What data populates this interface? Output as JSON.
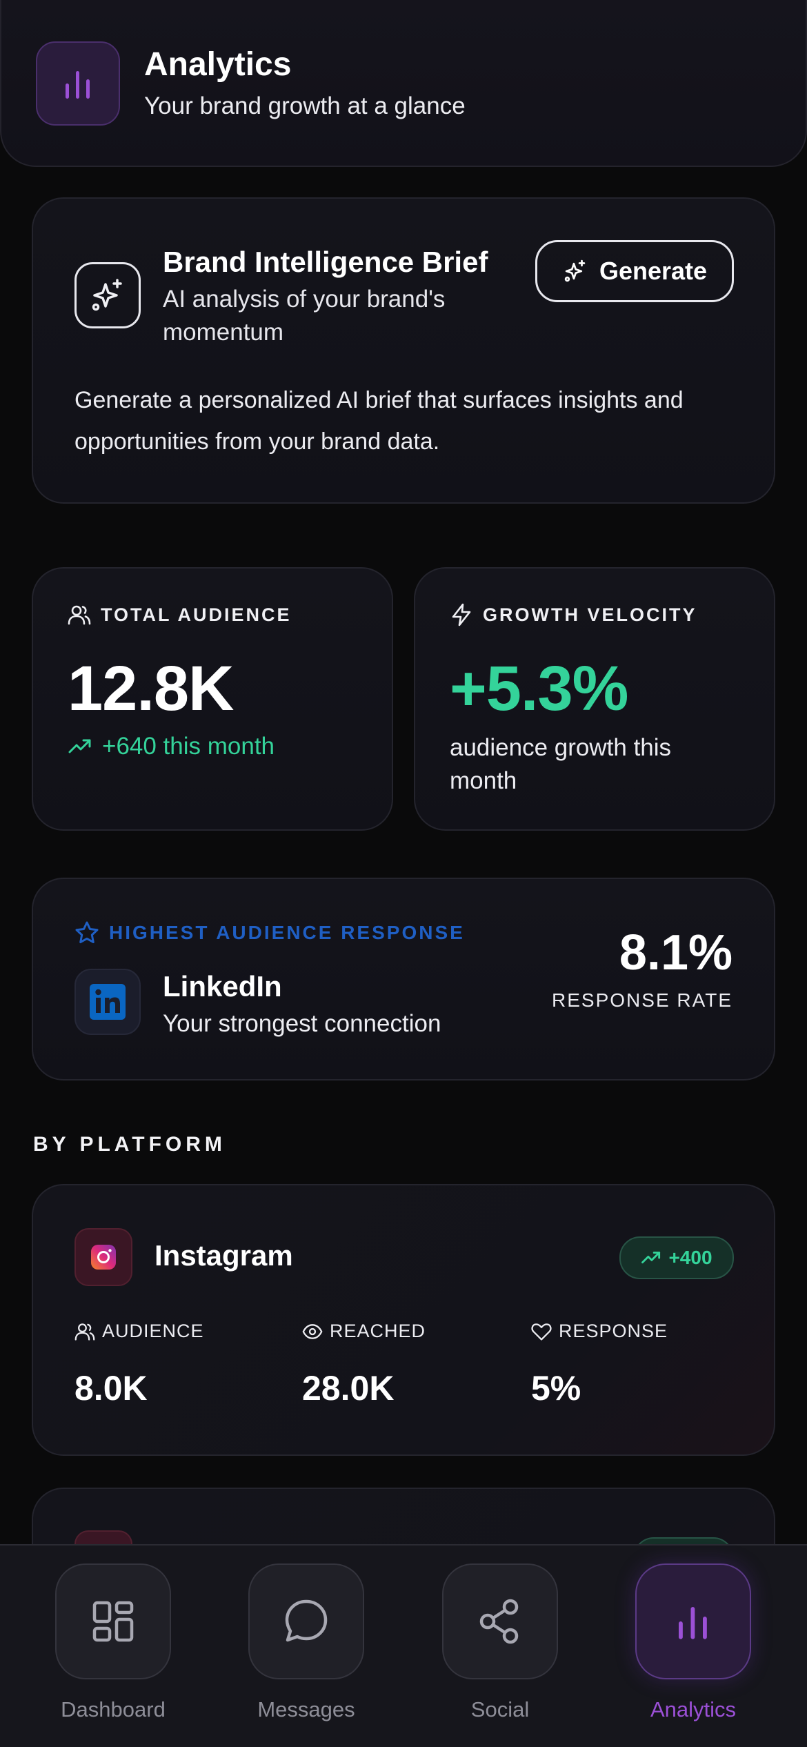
{
  "header": {
    "title": "Analytics",
    "subtitle": "Your brand growth at a glance",
    "icon": "bar-chart-icon"
  },
  "brief": {
    "title": "Brand Intelligence Brief",
    "subtitle": "AI analysis of your brand's momentum",
    "button_label": "Generate",
    "body": "Generate a personalized AI brief that surfaces insights and opportunities from your brand data."
  },
  "stats": {
    "audience": {
      "label": "TOTAL AUDIENCE",
      "value": "12.8K",
      "note": "+640 this month"
    },
    "velocity": {
      "label": "GROWTH VELOCITY",
      "value": "+5.3%",
      "note": "audience growth this month"
    }
  },
  "highlight": {
    "label": "HIGHEST AUDIENCE RESPONSE",
    "platform": "LinkedIn",
    "subtitle": "Your strongest connection",
    "rate": "8.1%",
    "rate_label": "RESPONSE RATE"
  },
  "platforms_section": {
    "label": "BY PLATFORM",
    "items": [
      {
        "name": "Instagram",
        "badge": "+400",
        "metrics": [
          {
            "label": "AUDIENCE",
            "value": "8.0K"
          },
          {
            "label": "REACHED",
            "value": "28.0K"
          },
          {
            "label": "RESPONSE",
            "value": "5%"
          }
        ]
      }
    ]
  },
  "colors": {
    "accent_purple": "#9b50d6",
    "positive_green": "#34d39a",
    "linkedin_blue": "#1f5fc4"
  },
  "nav": {
    "items": [
      {
        "label": "Dashboard",
        "icon": "grid-icon"
      },
      {
        "label": "Messages",
        "icon": "chat-bubble-icon"
      },
      {
        "label": "Social",
        "icon": "share-icon"
      },
      {
        "label": "Analytics",
        "icon": "bar-chart-icon",
        "active": true
      }
    ]
  }
}
